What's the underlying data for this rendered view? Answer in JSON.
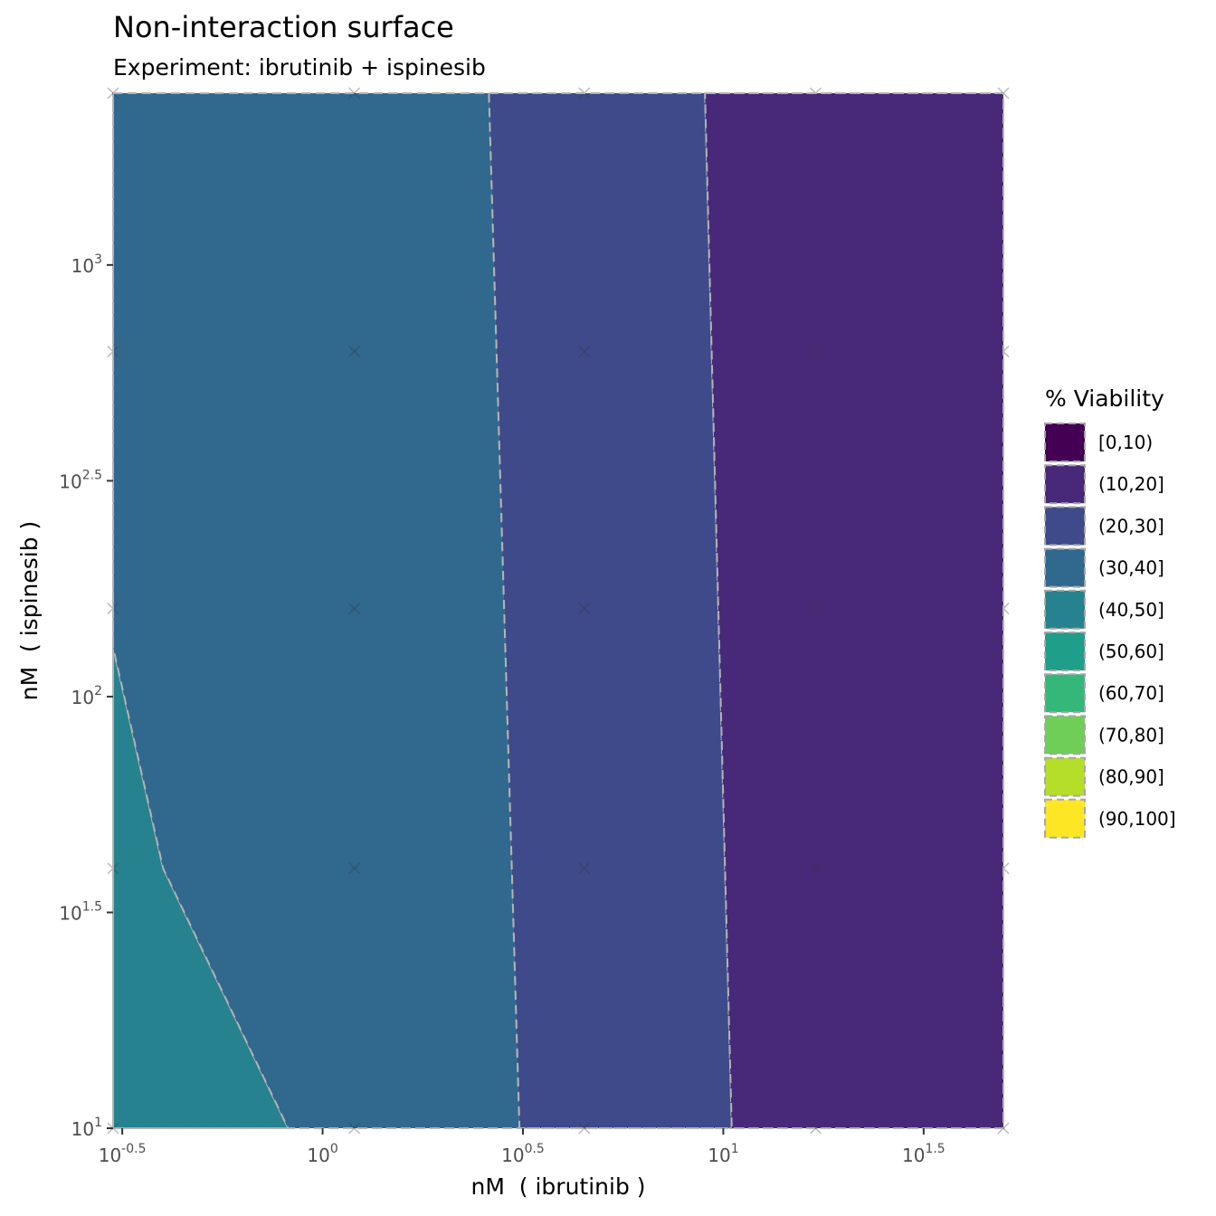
{
  "chart_data": {
    "type": "contour",
    "title": "Non-interaction surface",
    "subtitle": "Experiment: ibrutinib + ispinesib",
    "xlabel": "nM  ( ibrutinib )",
    "ylabel": "nM  ( ispinesib )",
    "x_scale": "log10",
    "y_scale": "log10",
    "xlim": [
      0.3,
      50
    ],
    "ylim": [
      10,
      2500
    ],
    "x_ticks": [
      {
        "value": 0.3162,
        "base": "10",
        "exp": "-0.5"
      },
      {
        "value": 1,
        "base": "10",
        "exp": "0"
      },
      {
        "value": 3.162,
        "base": "10",
        "exp": "0.5"
      },
      {
        "value": 10,
        "base": "10",
        "exp": "1"
      },
      {
        "value": 31.62,
        "base": "10",
        "exp": "1.5"
      }
    ],
    "y_ticks": [
      {
        "value": 10,
        "base": "10",
        "exp": "1"
      },
      {
        "value": 31.62,
        "base": "10",
        "exp": "1.5"
      },
      {
        "value": 100,
        "base": "10",
        "exp": "2"
      },
      {
        "value": 316.2,
        "base": "10",
        "exp": "2.5"
      },
      {
        "value": 1000,
        "base": "10",
        "exp": "3"
      }
    ],
    "dose_points": {
      "x": [
        0.3,
        1.2,
        4.5,
        17,
        50
      ],
      "y": [
        10,
        40,
        160,
        630,
        2500
      ]
    },
    "regions": [
      {
        "bin": "(40,50]",
        "color": "#26828e",
        "polygon": [
          [
            0.3,
            10
          ],
          [
            0.3,
            130
          ],
          [
            0.4,
            40
          ],
          [
            0.82,
            10
          ]
        ]
      },
      {
        "bin": "(30,40]",
        "color": "#31688e",
        "polygon": [
          [
            0.3,
            2500
          ],
          [
            2.6,
            2500
          ],
          [
            3.1,
            10
          ],
          [
            0.82,
            10
          ],
          [
            0.4,
            40
          ],
          [
            0.3,
            130
          ]
        ]
      },
      {
        "bin": "(20,30]",
        "color": "#3e4a89",
        "polygon": [
          [
            2.6,
            2500
          ],
          [
            9.0,
            2500
          ],
          [
            10.5,
            10
          ],
          [
            3.1,
            10
          ]
        ]
      },
      {
        "bin": "(10,20]",
        "color": "#482878",
        "polygon": [
          [
            9.0,
            2500
          ],
          [
            50,
            2500
          ],
          [
            50,
            10
          ],
          [
            10.5,
            10
          ]
        ]
      }
    ],
    "legend": {
      "title": "% Viability",
      "position": "right",
      "items": [
        {
          "label": "[0,10)",
          "color": "#440154"
        },
        {
          "label": "(10,20]",
          "color": "#482878"
        },
        {
          "label": "(20,30]",
          "color": "#3e4a89"
        },
        {
          "label": "(30,40]",
          "color": "#31688e"
        },
        {
          "label": "(40,50]",
          "color": "#26828e"
        },
        {
          "label": "(50,60]",
          "color": "#1f9e89"
        },
        {
          "label": "(60,70]",
          "color": "#35b779"
        },
        {
          "label": "(70,80]",
          "color": "#6ece58"
        },
        {
          "label": "(80,90]",
          "color": "#b5de2b"
        },
        {
          "label": "(90,100]",
          "color": "#fde725"
        }
      ]
    }
  }
}
